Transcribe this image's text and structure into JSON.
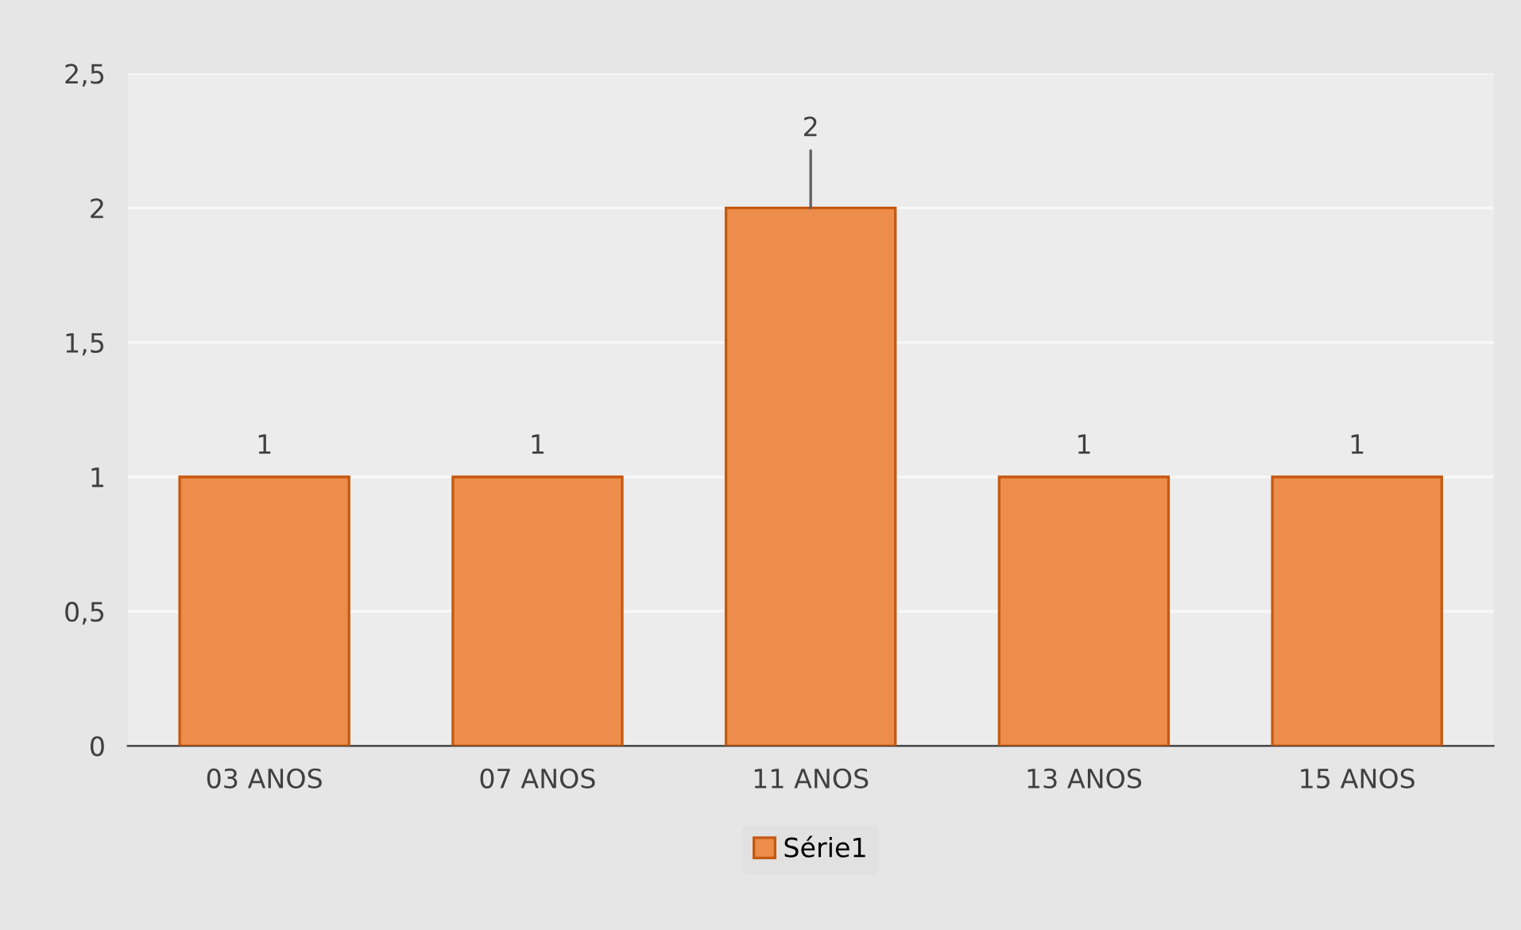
{
  "chart_data": {
    "type": "bar",
    "categories": [
      "03 ANOS",
      "07 ANOS",
      "11 ANOS",
      "13 ANOS",
      "15 ANOS"
    ],
    "series": [
      {
        "name": "Série1",
        "color": "#ed8d4b",
        "values": [
          1,
          1,
          2,
          1,
          1
        ]
      }
    ],
    "ylim": [
      0,
      2.5
    ],
    "yticks": [
      0,
      {
        "value": 0.5,
        "label": "0,5"
      },
      1,
      {
        "value": 1.5,
        "label": "1,5"
      },
      2,
      {
        "value": 2.5,
        "label": "2,5"
      }
    ],
    "grid": "y",
    "legend": "bottom",
    "data_labels": true
  }
}
